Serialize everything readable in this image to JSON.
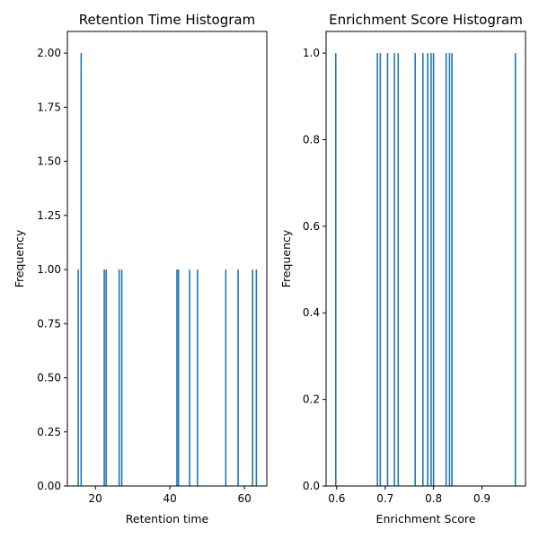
{
  "colors": {
    "bar": "#1f77b4",
    "axis": "#000000",
    "background": "#ffffff"
  },
  "chart_data": [
    {
      "type": "bar",
      "title": "Retention Time Histogram",
      "xlabel": "Retention time",
      "ylabel": "Frequency",
      "xlim": [
        12.5,
        66
      ],
      "ylim": [
        0,
        2.1
      ],
      "xticks": [
        20,
        40,
        60
      ],
      "xtick_labels": [
        "20",
        "40",
        "60"
      ],
      "yticks": [
        0,
        0.25,
        0.5,
        0.75,
        1.0,
        1.25,
        1.5,
        1.75,
        2.0
      ],
      "ytick_labels": [
        "0.00",
        "0.25",
        "0.50",
        "0.75",
        "1.00",
        "1.25",
        "1.50",
        "1.75",
        "2.00"
      ],
      "bins": [
        {
          "x": 15.4,
          "value": 1
        },
        {
          "x": 16.2,
          "value": 2
        },
        {
          "x": 22.4,
          "value": 1
        },
        {
          "x": 22.9,
          "value": 1
        },
        {
          "x": 26.4,
          "value": 1
        },
        {
          "x": 27.1,
          "value": 1
        },
        {
          "x": 41.9,
          "value": 1
        },
        {
          "x": 42.3,
          "value": 1
        },
        {
          "x": 45.3,
          "value": 1
        },
        {
          "x": 47.4,
          "value": 1
        },
        {
          "x": 55.0,
          "value": 1
        },
        {
          "x": 58.3,
          "value": 1
        },
        {
          "x": 62.2,
          "value": 1
        },
        {
          "x": 63.2,
          "value": 1
        }
      ],
      "bin_width": 0.28
    },
    {
      "type": "bar",
      "title": "Enrichment Score Histogram",
      "xlabel": "Enrichment Score",
      "ylabel": "Frequency",
      "xlim": [
        0.578,
        0.99
      ],
      "ylim": [
        0,
        1.05
      ],
      "xticks": [
        0.6,
        0.7,
        0.8,
        0.9
      ],
      "xtick_labels": [
        "0.6",
        "0.7",
        "0.8",
        "0.9"
      ],
      "yticks": [
        0,
        0.2,
        0.4,
        0.6,
        0.8,
        1.0
      ],
      "ytick_labels": [
        "0.0",
        "0.2",
        "0.4",
        "0.6",
        "0.8",
        "1.0"
      ],
      "bins": [
        {
          "x": 0.598,
          "value": 1
        },
        {
          "x": 0.684,
          "value": 1
        },
        {
          "x": 0.69,
          "value": 1
        },
        {
          "x": 0.705,
          "value": 1
        },
        {
          "x": 0.719,
          "value": 1
        },
        {
          "x": 0.727,
          "value": 1
        },
        {
          "x": 0.762,
          "value": 1
        },
        {
          "x": 0.778,
          "value": 1
        },
        {
          "x": 0.788,
          "value": 1
        },
        {
          "x": 0.795,
          "value": 1
        },
        {
          "x": 0.8,
          "value": 1
        },
        {
          "x": 0.826,
          "value": 1
        },
        {
          "x": 0.833,
          "value": 1
        },
        {
          "x": 0.838,
          "value": 1
        },
        {
          "x": 0.969,
          "value": 1
        }
      ],
      "bin_width": 0.0021
    }
  ]
}
